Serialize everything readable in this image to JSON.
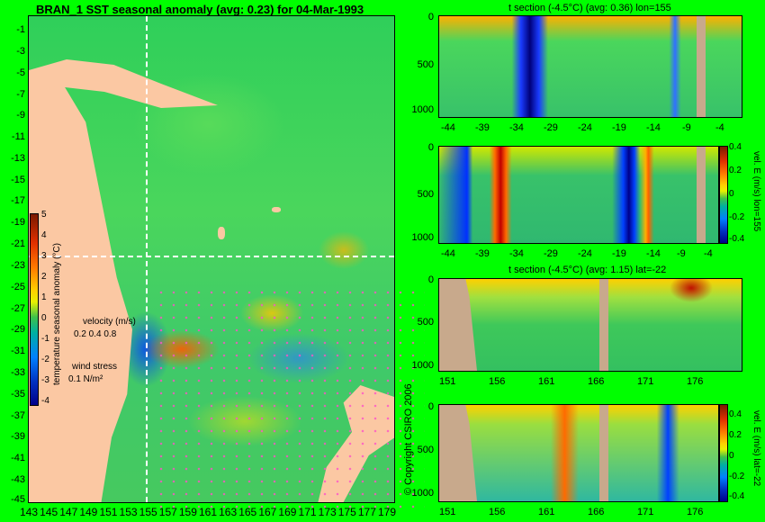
{
  "map": {
    "title": "BRAN_1  SST seasonal anomaly  (avg: 0.23)  for 04-Mar-1993",
    "y_ticks": [
      "-1",
      "-3",
      "-5",
      "-7",
      "-9",
      "-11",
      "-13",
      "-15",
      "-17",
      "-19",
      "-21",
      "-23",
      "-25",
      "-27",
      "-29",
      "-31",
      "-33",
      "-35",
      "-37",
      "-39",
      "-41",
      "-43",
      "-45"
    ],
    "x_ticks": [
      "143",
      "145",
      "147",
      "149",
      "151",
      "153",
      "155",
      "157",
      "159",
      "161",
      "163",
      "165",
      "167",
      "169",
      "171",
      "173",
      "175",
      "177",
      "179"
    ],
    "colorbar": {
      "title": "temperature seasonal anomaly (°C)",
      "labels": [
        "5",
        "4",
        "3",
        "2",
        "1",
        "0",
        "-1",
        "-2",
        "-3",
        "-4"
      ]
    },
    "velocity_key": {
      "title": "velocity (m/s)",
      "values": "0.2 0.4 0.8",
      "wind_title": "wind stress",
      "wind_value": "0.1 N/m²"
    },
    "colors": {
      "land": "#fbc8a3",
      "crosshair": "#ffffff",
      "arrows": "#ff50c8"
    }
  },
  "copyright": "© Copyright CSIRO 2006",
  "sections": [
    {
      "title": "t section (-4.5°C) (avg: 0.36) lon=155",
      "y_ticks": [
        "0",
        "500",
        "1000"
      ],
      "x_ticks": [
        "-44",
        "-39",
        "-34",
        "-29",
        "-24",
        "-19",
        "-14",
        "-9",
        "-4"
      ]
    },
    {
      "title": "",
      "y_ticks": [
        "0",
        "500",
        "1000"
      ],
      "x_ticks": [
        "-44",
        "-39",
        "-34",
        "-29",
        "-24",
        "-19",
        "-14",
        "-9",
        "-4"
      ],
      "colorbar": {
        "title": "vel. E (m/s) lon=155",
        "labels": [
          "0.4",
          "0.2",
          "0",
          "-0.2",
          "-0.4"
        ]
      }
    },
    {
      "title": "t section (-4.5°C) (avg: 1.15) lat=-22",
      "y_ticks": [
        "0",
        "500",
        "1000"
      ],
      "x_ticks": [
        "151",
        "156",
        "161",
        "166",
        "171",
        "176"
      ]
    },
    {
      "title": "",
      "y_ticks": [
        "0",
        "500",
        "1000"
      ],
      "x_ticks": [
        "151",
        "156",
        "161",
        "166",
        "171",
        "176"
      ],
      "colorbar": {
        "title": "vel. E (m/s) lat=-22",
        "labels": [
          "0.4",
          "0.2",
          "0",
          "-0.2",
          "-0.4"
        ]
      }
    }
  ]
}
